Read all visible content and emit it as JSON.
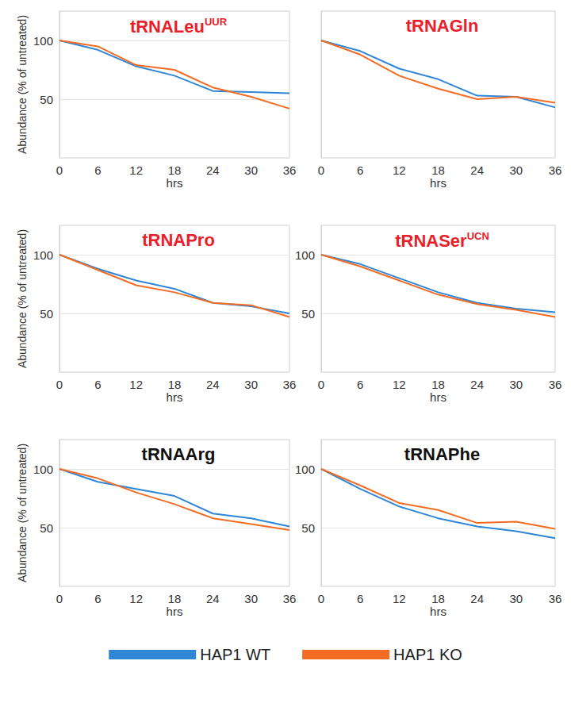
{
  "chart_data": [
    {
      "type": "line",
      "title": "tRNALeu",
      "title_superscript": "UUR",
      "y_label": "Abundance (% of untreated)",
      "x_label": "hrs",
      "x": [
        0,
        6,
        12,
        18,
        24,
        30,
        36
      ],
      "xlim": [
        0,
        36
      ],
      "xticks": [
        0,
        6,
        12,
        18,
        24,
        30,
        36
      ],
      "ylim": [
        0,
        125
      ],
      "yticks": [
        50,
        100
      ],
      "grid": true,
      "legend": "bottom",
      "series": [
        {
          "name": "HAP1 WT",
          "color": "#2f86d6",
          "values": [
            100,
            92,
            78,
            70,
            57,
            56,
            55
          ]
        },
        {
          "name": "HAP1 KO",
          "color": "#f36c24",
          "values": [
            100,
            95,
            79,
            75,
            60,
            52,
            42
          ]
        }
      ]
    },
    {
      "type": "line",
      "title": "tRNAGln",
      "x_label": "hrs",
      "x": [
        0,
        6,
        12,
        18,
        24,
        30,
        36
      ],
      "xlim": [
        0,
        36
      ],
      "xticks": [
        0,
        6,
        12,
        18,
        24,
        30,
        36
      ],
      "ylim": [
        0,
        125
      ],
      "yticks": [],
      "grid": true,
      "legend": "bottom",
      "series": [
        {
          "name": "HAP1 WT",
          "color": "#2f86d6",
          "values": [
            100,
            91,
            76,
            67,
            53,
            52,
            43
          ]
        },
        {
          "name": "HAP1 KO",
          "color": "#f36c24",
          "values": [
            100,
            88,
            70,
            59,
            50,
            52,
            47
          ]
        }
      ]
    },
    {
      "type": "line",
      "title": "tRNAPro",
      "y_label": "Abundance (% of untreated)",
      "x_label": "hrs",
      "x": [
        0,
        6,
        12,
        18,
        24,
        30,
        36
      ],
      "xlim": [
        0,
        36
      ],
      "xticks": [
        0,
        6,
        12,
        18,
        24,
        30,
        36
      ],
      "ylim": [
        0,
        125
      ],
      "yticks": [
        50,
        100
      ],
      "grid": true,
      "legend": "bottom",
      "series": [
        {
          "name": "HAP1 WT",
          "color": "#2f86d6",
          "values": [
            100,
            88,
            78,
            71,
            59,
            56,
            50
          ]
        },
        {
          "name": "HAP1 KO",
          "color": "#f36c24",
          "values": [
            100,
            87,
            74,
            68,
            59,
            57,
            47
          ]
        }
      ]
    },
    {
      "type": "line",
      "title": "tRNASer",
      "title_superscript": "UCN",
      "x_label": "hrs",
      "x": [
        0,
        6,
        12,
        18,
        24,
        30,
        36
      ],
      "xlim": [
        0,
        36
      ],
      "xticks": [
        0,
        6,
        12,
        18,
        24,
        30,
        36
      ],
      "ylim": [
        0,
        125
      ],
      "yticks": [
        50,
        100
      ],
      "grid": true,
      "legend": "bottom",
      "series": [
        {
          "name": "HAP1 WT",
          "color": "#2f86d6",
          "values": [
            100,
            92,
            80,
            68,
            59,
            54,
            51
          ]
        },
        {
          "name": "HAP1 KO",
          "color": "#f36c24",
          "values": [
            100,
            90,
            78,
            66,
            58,
            53,
            47
          ]
        }
      ]
    },
    {
      "type": "line",
      "title": "tRNAArg",
      "y_label": "Abundance (% of untreated)",
      "x_label": "hrs",
      "x": [
        0,
        6,
        12,
        18,
        24,
        30,
        36
      ],
      "xlim": [
        0,
        36
      ],
      "xticks": [
        0,
        6,
        12,
        18,
        24,
        30,
        36
      ],
      "ylim": [
        0,
        125
      ],
      "yticks": [
        50,
        100
      ],
      "grid": true,
      "legend": "bottom",
      "series": [
        {
          "name": "HAP1 WT",
          "color": "#2f86d6",
          "values": [
            100,
            89,
            83,
            77,
            62,
            58,
            51
          ]
        },
        {
          "name": "HAP1 KO",
          "color": "#f36c24",
          "values": [
            100,
            92,
            80,
            70,
            58,
            53,
            48
          ]
        }
      ]
    },
    {
      "type": "line",
      "title": "tRNAPhe",
      "x_label": "hrs",
      "x": [
        0,
        6,
        12,
        18,
        24,
        30,
        36
      ],
      "xlim": [
        0,
        36
      ],
      "xticks": [
        0,
        6,
        12,
        18,
        24,
        30,
        36
      ],
      "ylim": [
        0,
        125
      ],
      "yticks": [
        50,
        100
      ],
      "grid": true,
      "legend": "bottom",
      "series": [
        {
          "name": "HAP1 WT",
          "color": "#2f86d6",
          "values": [
            100,
            83,
            68,
            58,
            51,
            47,
            41
          ]
        },
        {
          "name": "HAP1 KO",
          "color": "#f36c24",
          "values": [
            100,
            86,
            71,
            65,
            54,
            55,
            49
          ]
        }
      ]
    }
  ]
}
